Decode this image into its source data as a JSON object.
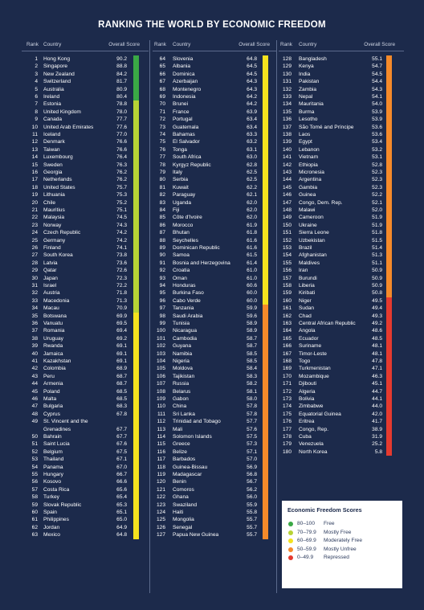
{
  "title": "RANKING THE WORLD BY ECONOMIC FREEDOM",
  "headers": {
    "rank": "Rank",
    "country": "Country",
    "score": "Overall Score"
  },
  "colors": {
    "background": "#1c2a4b",
    "free": "#3aa845",
    "mostly_free": "#b7d335",
    "moderately_free": "#f4e21e",
    "mostly_unfree": "#f58a2a",
    "repressed": "#e53a2f"
  },
  "legend": {
    "title": "Economic Freedom Scores",
    "items": [
      {
        "range": "80–100",
        "label": "Free",
        "color": "#3aa845"
      },
      {
        "range": "70–79.9",
        "label": "Mostly Free",
        "color": "#b7d335"
      },
      {
        "range": "60–69.9",
        "label": "Moderately Free",
        "color": "#f4e21e"
      },
      {
        "range": "50–59.9",
        "label": "Mostly Unfree",
        "color": "#f58a2a"
      },
      {
        "range": "0–49.9",
        "label": "Repressed",
        "color": "#e53a2f"
      }
    ]
  },
  "chart_data": {
    "type": "table",
    "title": "RANKING THE WORLD BY ECONOMIC FREEDOM",
    "columns": [
      "Rank",
      "Country",
      "Overall Score"
    ],
    "rows": [
      [
        1,
        "Hong Kong",
        90.2
      ],
      [
        2,
        "Singapore",
        88.8
      ],
      [
        3,
        "New Zealand",
        84.2
      ],
      [
        4,
        "Switzerland",
        81.7
      ],
      [
        5,
        "Australia",
        80.9
      ],
      [
        6,
        "Ireland",
        80.4
      ],
      [
        7,
        "Estonia",
        78.8
      ],
      [
        8,
        "United Kingdom",
        78.0
      ],
      [
        9,
        "Canada",
        77.7
      ],
      [
        10,
        "United Arab Emirates",
        77.6
      ],
      [
        11,
        "Iceland",
        77.0
      ],
      [
        12,
        "Denmark",
        76.6
      ],
      [
        13,
        "Taiwan",
        76.6
      ],
      [
        14,
        "Luxembourg",
        76.4
      ],
      [
        15,
        "Sweden",
        76.3
      ],
      [
        16,
        "Georgia",
        76.2
      ],
      [
        17,
        "Netherlands",
        76.2
      ],
      [
        18,
        "United States",
        75.7
      ],
      [
        19,
        "Lithuania",
        75.3
      ],
      [
        20,
        "Chile",
        75.2
      ],
      [
        21,
        "Mauritius",
        75.1
      ],
      [
        22,
        "Malaysia",
        74.5
      ],
      [
        23,
        "Norway",
        74.3
      ],
      [
        24,
        "Czech Republic",
        74.2
      ],
      [
        25,
        "Germany",
        74.2
      ],
      [
        26,
        "Finland",
        74.1
      ],
      [
        27,
        "South Korea",
        73.8
      ],
      [
        28,
        "Latvia",
        73.6
      ],
      [
        29,
        "Qatar",
        72.6
      ],
      [
        30,
        "Japan",
        72.3
      ],
      [
        31,
        "Israel",
        72.2
      ],
      [
        32,
        "Austria",
        71.8
      ],
      [
        33,
        "Macedonia",
        71.3
      ],
      [
        34,
        "Macau",
        70.9
      ],
      [
        35,
        "Botswana",
        69.9
      ],
      [
        36,
        "Vanuatu",
        69.5
      ],
      [
        37,
        "Romania",
        69.4
      ],
      [
        38,
        "Uruguay",
        69.2
      ],
      [
        39,
        "Rwanda",
        69.1
      ],
      [
        40,
        "Jamaica",
        69.1
      ],
      [
        41,
        "Kazakhstan",
        69.1
      ],
      [
        42,
        "Colombia",
        68.9
      ],
      [
        43,
        "Peru",
        68.7
      ],
      [
        44,
        "Armenia",
        68.7
      ],
      [
        45,
        "Poland",
        68.5
      ],
      [
        46,
        "Malta",
        68.5
      ],
      [
        47,
        "Bulgaria",
        68.3
      ],
      [
        48,
        "Cyprus",
        67.8
      ],
      [
        49,
        "St. Vincent and the Grenadines",
        67.7
      ],
      [
        50,
        "Bahrain",
        67.7
      ],
      [
        51,
        "Saint Lucia",
        67.6
      ],
      [
        52,
        "Belgium",
        67.5
      ],
      [
        53,
        "Thailand",
        67.1
      ],
      [
        54,
        "Panama",
        67.0
      ],
      [
        55,
        "Hungary",
        66.7
      ],
      [
        56,
        "Kosovo",
        66.6
      ],
      [
        57,
        "Costa Rica",
        65.6
      ],
      [
        58,
        "Turkey",
        65.4
      ],
      [
        59,
        "Slovak Republic",
        65.3
      ],
      [
        60,
        "Spain",
        65.1
      ],
      [
        61,
        "Philippines",
        65.0
      ],
      [
        62,
        "Jordan",
        64.9
      ],
      [
        63,
        "Mexico",
        64.8
      ],
      [
        64,
        "Slovenia",
        64.8
      ],
      [
        65,
        "Albania",
        64.5
      ],
      [
        66,
        "Dominica",
        64.5
      ],
      [
        67,
        "Azerbaijan",
        64.3
      ],
      [
        68,
        "Montenegro",
        64.3
      ],
      [
        69,
        "Indonesia",
        64.2
      ],
      [
        70,
        "Brunei",
        64.2
      ],
      [
        71,
        "France",
        63.9
      ],
      [
        72,
        "Portugal",
        63.4
      ],
      [
        73,
        "Guatemala",
        63.4
      ],
      [
        74,
        "Bahamas",
        63.3
      ],
      [
        75,
        "El Salvador",
        63.2
      ],
      [
        76,
        "Tonga",
        63.1
      ],
      [
        77,
        "South Africa",
        63.0
      ],
      [
        78,
        "Kyrgyz Republic",
        62.8
      ],
      [
        79,
        "Italy",
        62.5
      ],
      [
        80,
        "Serbia",
        62.5
      ],
      [
        81,
        "Kuwait",
        62.2
      ],
      [
        82,
        "Paraguay",
        62.1
      ],
      [
        83,
        "Uganda",
        62.0
      ],
      [
        84,
        "Fiji",
        62.0
      ],
      [
        85,
        "Côte d'Ivoire",
        62.0
      ],
      [
        86,
        "Morocco",
        61.9
      ],
      [
        87,
        "Bhutan",
        61.8
      ],
      [
        88,
        "Seychelles",
        61.6
      ],
      [
        89,
        "Dominican Republic",
        61.6
      ],
      [
        90,
        "Samoa",
        61.5
      ],
      [
        91,
        "Bosnia and Herzegovina",
        61.4
      ],
      [
        92,
        "Croatia",
        61.0
      ],
      [
        93,
        "Oman",
        61.0
      ],
      [
        94,
        "Honduras",
        60.6
      ],
      [
        95,
        "Burkina Faso",
        60.0
      ],
      [
        96,
        "Cabo Verde",
        60.0
      ],
      [
        97,
        "Tanzania",
        59.9
      ],
      [
        98,
        "Saudi Arabia",
        59.6
      ],
      [
        99,
        "Tunisia",
        58.9
      ],
      [
        100,
        "Nicaragua",
        58.9
      ],
      [
        101,
        "Cambodia",
        58.7
      ],
      [
        102,
        "Guyana",
        58.7
      ],
      [
        103,
        "Namibia",
        58.5
      ],
      [
        104,
        "Nigeria",
        58.5
      ],
      [
        105,
        "Moldova",
        58.4
      ],
      [
        106,
        "Tajikistan",
        58.3
      ],
      [
        107,
        "Russia",
        58.2
      ],
      [
        108,
        "Belarus",
        58.1
      ],
      [
        109,
        "Gabon",
        58.0
      ],
      [
        110,
        "China",
        57.8
      ],
      [
        111,
        "Sri Lanka",
        57.8
      ],
      [
        112,
        "Trinidad and Tobago",
        57.7
      ],
      [
        113,
        "Mali",
        57.6
      ],
      [
        114,
        "Solomon Islands",
        57.5
      ],
      [
        115,
        "Greece",
        57.3
      ],
      [
        116,
        "Belize",
        57.1
      ],
      [
        117,
        "Barbados",
        57.0
      ],
      [
        118,
        "Guinea-Bissau",
        56.9
      ],
      [
        119,
        "Madagascar",
        56.8
      ],
      [
        120,
        "Benin",
        56.7
      ],
      [
        121,
        "Comoros",
        56.2
      ],
      [
        122,
        "Ghana",
        56.0
      ],
      [
        123,
        "Swaziland",
        55.9
      ],
      [
        124,
        "Haiti",
        55.8
      ],
      [
        125,
        "Mongolia",
        55.7
      ],
      [
        126,
        "Senegal",
        55.7
      ],
      [
        127,
        "Papua New Guinea",
        55.7
      ],
      [
        128,
        "Bangladesh",
        55.1
      ],
      [
        129,
        "Kenya",
        54.7
      ],
      [
        130,
        "India",
        54.5
      ],
      [
        131,
        "Pakistan",
        54.4
      ],
      [
        132,
        "Zambia",
        54.3
      ],
      [
        133,
        "Nepal",
        54.1
      ],
      [
        134,
        "Mauritania",
        54.0
      ],
      [
        135,
        "Burma",
        53.9
      ],
      [
        136,
        "Lesotho",
        53.9
      ],
      [
        137,
        "São Tomé and Príncipe",
        53.6
      ],
      [
        138,
        "Laos",
        53.6
      ],
      [
        139,
        "Egypt",
        53.4
      ],
      [
        140,
        "Lebanon",
        53.2
      ],
      [
        141,
        "Vietnam",
        53.1
      ],
      [
        142,
        "Ethiopia",
        52.8
      ],
      [
        143,
        "Micronesia",
        52.3
      ],
      [
        144,
        "Argentina",
        52.3
      ],
      [
        145,
        "Gambia",
        52.3
      ],
      [
        146,
        "Guinea",
        52.2
      ],
      [
        147,
        "Congo, Dem. Rep.",
        52.1
      ],
      [
        148,
        "Malawi",
        52.0
      ],
      [
        149,
        "Cameroon",
        51.9
      ],
      [
        150,
        "Ukraine",
        51.9
      ],
      [
        151,
        "Sierra Leone",
        51.8
      ],
      [
        152,
        "Uzbekistan",
        51.5
      ],
      [
        153,
        "Brazil",
        51.4
      ],
      [
        154,
        "Afghanistan",
        51.3
      ],
      [
        155,
        "Maldives",
        51.1
      ],
      [
        156,
        "Iran",
        50.9
      ],
      [
        157,
        "Burundi",
        50.9
      ],
      [
        158,
        "Liberia",
        50.9
      ],
      [
        159,
        "Kiribati",
        50.8
      ],
      [
        160,
        "Niger",
        49.5
      ],
      [
        161,
        "Sudan",
        49.4
      ],
      [
        162,
        "Chad",
        49.3
      ],
      [
        163,
        "Central African Republic",
        49.2
      ],
      [
        164,
        "Angola",
        48.6
      ],
      [
        165,
        "Ecuador",
        48.5
      ],
      [
        166,
        "Suriname",
        48.1
      ],
      [
        167,
        "Timor-Leste",
        48.1
      ],
      [
        168,
        "Togo",
        47.8
      ],
      [
        169,
        "Turkmenistan",
        47.1
      ],
      [
        170,
        "Mozambique",
        46.3
      ],
      [
        171,
        "Djibouti",
        45.1
      ],
      [
        172,
        "Algeria",
        44.7
      ],
      [
        173,
        "Bolivia",
        44.1
      ],
      [
        174,
        "Zimbabwe",
        44.0
      ],
      [
        175,
        "Equatorial Guinea",
        42.0
      ],
      [
        176,
        "Eritrea",
        41.7
      ],
      [
        177,
        "Congo, Rep.",
        38.9
      ],
      [
        178,
        "Cuba",
        31.9
      ],
      [
        179,
        "Venezuela",
        25.2
      ],
      [
        180,
        "North Korea",
        5.8
      ]
    ]
  }
}
